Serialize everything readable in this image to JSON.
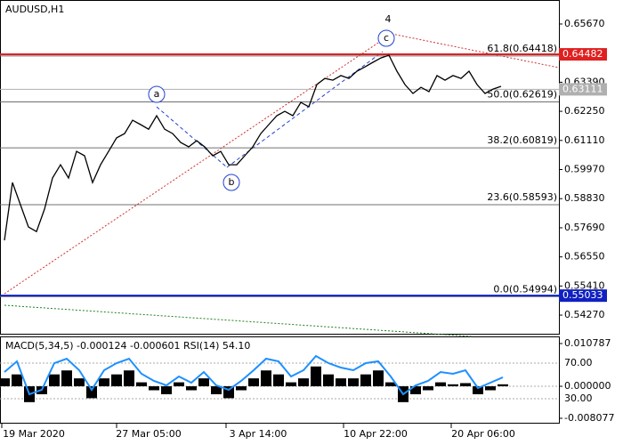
{
  "chart_data": [
    {
      "type": "line",
      "title": "AUDUSD,H1",
      "color": "#000000",
      "values": [
        0.572,
        0.5946,
        0.5859,
        0.5772,
        0.5754,
        0.5842,
        0.5964,
        0.6016,
        0.5964,
        0.6068,
        0.6051,
        0.5946,
        0.6016,
        0.6068,
        0.6121,
        0.6138,
        0.619,
        0.6173,
        0.6155,
        0.6208,
        0.6155,
        0.6138,
        0.6103,
        0.6086,
        0.611,
        0.6086,
        0.6051,
        0.6068,
        0.6016,
        0.6016,
        0.6051,
        0.6086,
        0.6138,
        0.6173,
        0.6208,
        0.6225,
        0.6208,
        0.626,
        0.6243,
        0.633,
        0.6354,
        0.6347,
        0.6365,
        0.6354,
        0.6382,
        0.6399,
        0.6417,
        0.6434,
        0.6445,
        0.6382,
        0.633,
        0.6295,
        0.6319,
        0.6302,
        0.6365,
        0.6347,
        0.6365,
        0.6354,
        0.6382,
        0.633,
        0.6295,
        0.6312,
        0.6323
      ],
      "x_labels": [
        "19 Mar 2020",
        "27 Mar 05:00",
        "3 Apr 14:00",
        "10 Apr 22:00",
        "20 Apr 06:00"
      ],
      "ylim": [
        0.5354,
        0.6661
      ],
      "yticks": [
        {
          "value": 0.6567,
          "label": "0.65670"
        },
        {
          "value": 0.6339,
          "label": "0.63390"
        },
        {
          "value": 0.6225,
          "label": "0.62250"
        },
        {
          "value": 0.6111,
          "label": "0.61110"
        },
        {
          "value": 0.5997,
          "label": "0.59970"
        },
        {
          "value": 0.5883,
          "label": "0.58830"
        },
        {
          "value": 0.5769,
          "label": "0.57690"
        },
        {
          "value": 0.5655,
          "label": "0.56550"
        },
        {
          "value": 0.5541,
          "label": "0.55410"
        },
        {
          "value": 0.5427,
          "label": "0.54270"
        }
      ],
      "fib_levels": [
        {
          "value": 0.64418,
          "label": "61.8(0.64418)"
        },
        {
          "value": 0.62619,
          "label": "50.0(0.62619)"
        },
        {
          "value": 0.60819,
          "label": "38.2(0.60819)"
        },
        {
          "value": 0.58593,
          "label": "23.6(0.58593)"
        },
        {
          "value": 0.54994,
          "label": "0.0(0.54994)"
        }
      ],
      "price_levels": [
        {
          "value": 0.64482,
          "label": "0.64482",
          "color": "#e02020"
        },
        {
          "value": 0.63111,
          "label": "0.63111",
          "color": "#b0b0b0"
        },
        {
          "value": 0.55033,
          "label": "0.55033",
          "color": "#1020c0"
        }
      ],
      "wave_labels": [
        "4",
        "c",
        "a",
        "b"
      ]
    },
    {
      "type": "bar",
      "title": "MACD(5,34,5) -0.000124 -0.000601 RSI(14) 54.10",
      "color": "#000000",
      "values": [
        0.002,
        0.003,
        -0.004,
        -0.002,
        0.003,
        0.004,
        0.002,
        -0.003,
        0.002,
        0.003,
        0.004,
        0.001,
        -0.001,
        -0.002,
        0.001,
        -0.001,
        0.002,
        -0.002,
        -0.003,
        -0.001,
        0.002,
        0.004,
        0.003,
        0.001,
        0.002,
        0.005,
        0.003,
        0.002,
        0.002,
        0.003,
        0.004,
        0.001,
        -0.004,
        -0.002,
        -0.001,
        0.001,
        0.0005,
        0.0008,
        -0.002,
        -0.001,
        0.0005
      ],
      "series": [
        {
          "name": "RSI(14)",
          "color": "#1e90ff",
          "axis": "y2",
          "values": [
            60,
            72,
            35,
            40,
            70,
            75,
            62,
            40,
            62,
            70,
            75,
            58,
            50,
            45,
            55,
            48,
            60,
            45,
            40,
            50,
            62,
            75,
            72,
            55,
            62,
            78,
            70,
            65,
            62,
            70,
            72,
            55,
            35,
            45,
            50,
            60,
            58,
            62,
            42,
            48,
            54.1
          ]
        }
      ],
      "ylim": [
        -0.008077,
        0.010787
      ],
      "yticks": [
        {
          "value": 0.010787,
          "label": "0.010787"
        },
        {
          "value": 0,
          "label": "0.000000"
        },
        {
          "value": -0.008077,
          "label": "-0.008077"
        }
      ],
      "y2lim": [
        8,
        92
      ],
      "y2ticks": [
        {
          "value": 70,
          "label": "70.00"
        },
        {
          "value": 30,
          "label": "30.00"
        }
      ]
    }
  ]
}
